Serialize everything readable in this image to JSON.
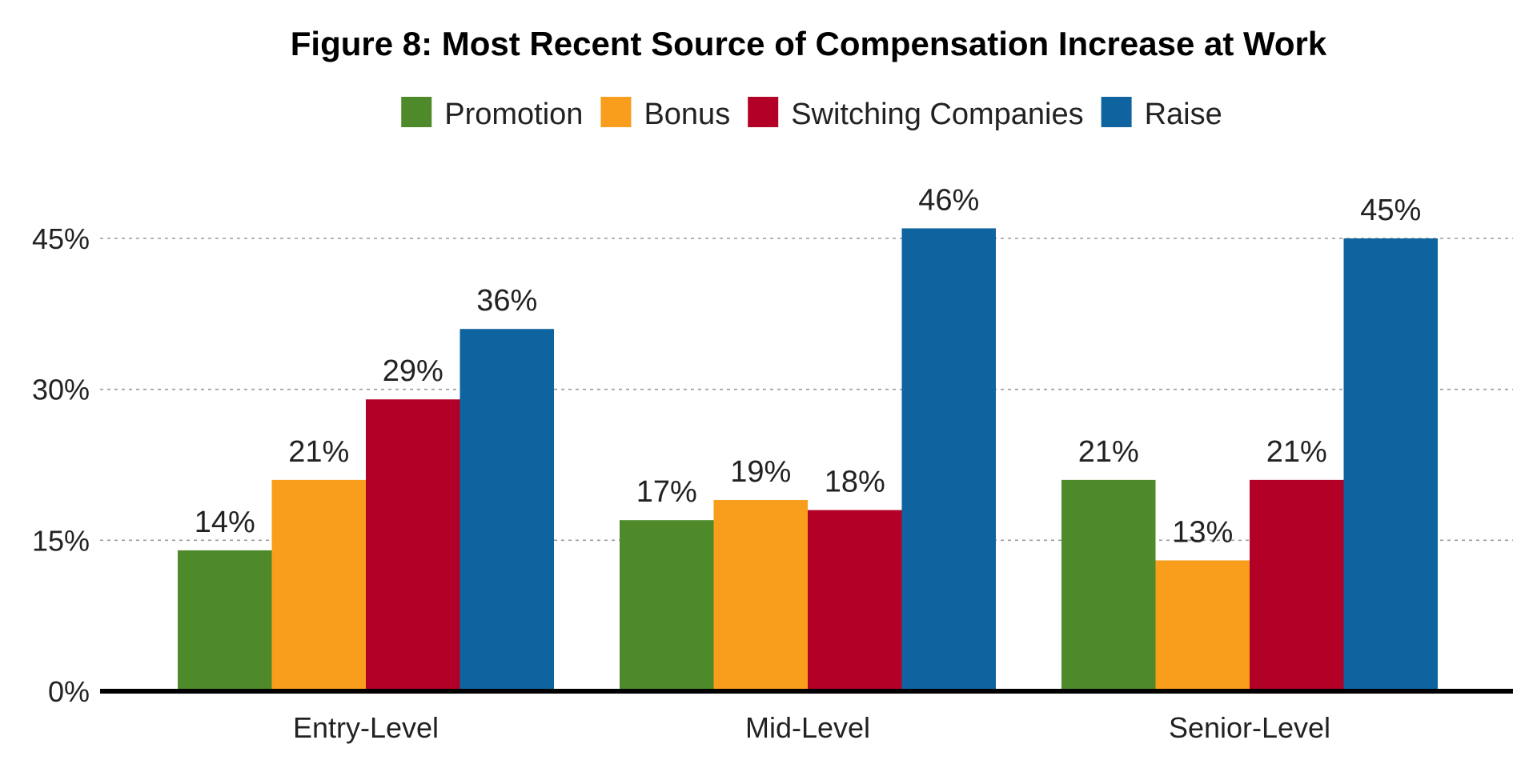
{
  "chart_data": {
    "type": "bar",
    "title": "Figure 8: Most Recent Source of Compensation Increase at Work",
    "xlabel": "",
    "ylabel": "",
    "categories": [
      "Entry-Level",
      "Mid-Level",
      "Senior-Level"
    ],
    "series": [
      {
        "name": "Promotion",
        "color": "#4e8a2a",
        "values": [
          14,
          17,
          21
        ]
      },
      {
        "name": "Bonus",
        "color": "#f99d1c",
        "values": [
          21,
          19,
          13
        ]
      },
      {
        "name": "Switching Companies",
        "color": "#b20026",
        "values": [
          29,
          18,
          21
        ]
      },
      {
        "name": "Raise",
        "color": "#0f64a0",
        "values": [
          36,
          46,
          45
        ]
      }
    ],
    "ylim": [
      0,
      45
    ],
    "y_ticks": [
      0,
      15,
      30,
      45
    ],
    "y_tick_labels": [
      "0%",
      "15%",
      "30%",
      "45%"
    ],
    "value_suffix": "%",
    "grid": true,
    "legend_position": "top-center"
  }
}
